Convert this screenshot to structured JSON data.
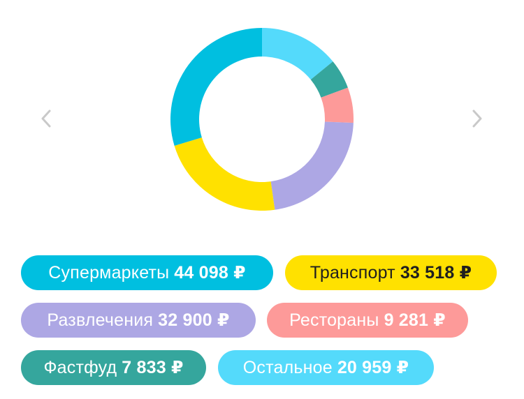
{
  "colors": {
    "arrow": "#c9c9c9",
    "supermarkets": "#00bfe0",
    "transport": "#ffe100",
    "entertainment": "#ada7e4",
    "restaurants": "#fd9a99",
    "fastfood": "#35a69d",
    "other": "#54dafb"
  },
  "icons": {
    "prev": "chevron-left-icon",
    "next": "chevron-right-icon"
  },
  "chart_data": {
    "type": "pie",
    "variant": "donut",
    "categories": [
      "Остальное",
      "Фастфуд",
      "Рестораны",
      "Развлечения",
      "Транспорт",
      "Супермаркеты"
    ],
    "values": [
      20959,
      7833,
      9281,
      32900,
      33518,
      44098
    ],
    "colors": [
      "#54dafb",
      "#35a69d",
      "#fd9a99",
      "#ada7e4",
      "#ffe100",
      "#00bfe0"
    ],
    "start": "top",
    "direction": "clockwise"
  },
  "legend": [
    {
      "label": "Супермаркеты",
      "amount": "44 098 ₽",
      "color": "#00bfe0",
      "text": "light"
    },
    {
      "label": "Транспорт",
      "amount": "33 518 ₽",
      "color": "#ffe100",
      "text": "dark"
    },
    {
      "label": "Развлечения",
      "amount": "32 900 ₽",
      "color": "#ada7e4",
      "text": "light"
    },
    {
      "label": "Рестораны",
      "amount": "9 281 ₽",
      "color": "#fd9a99",
      "text": "light"
    },
    {
      "label": "Фастфуд",
      "amount": "7 833 ₽",
      "color": "#35a69d",
      "text": "light"
    },
    {
      "label": "Остальное",
      "amount": "20 959 ₽",
      "color": "#54dafb",
      "text": "light"
    }
  ]
}
